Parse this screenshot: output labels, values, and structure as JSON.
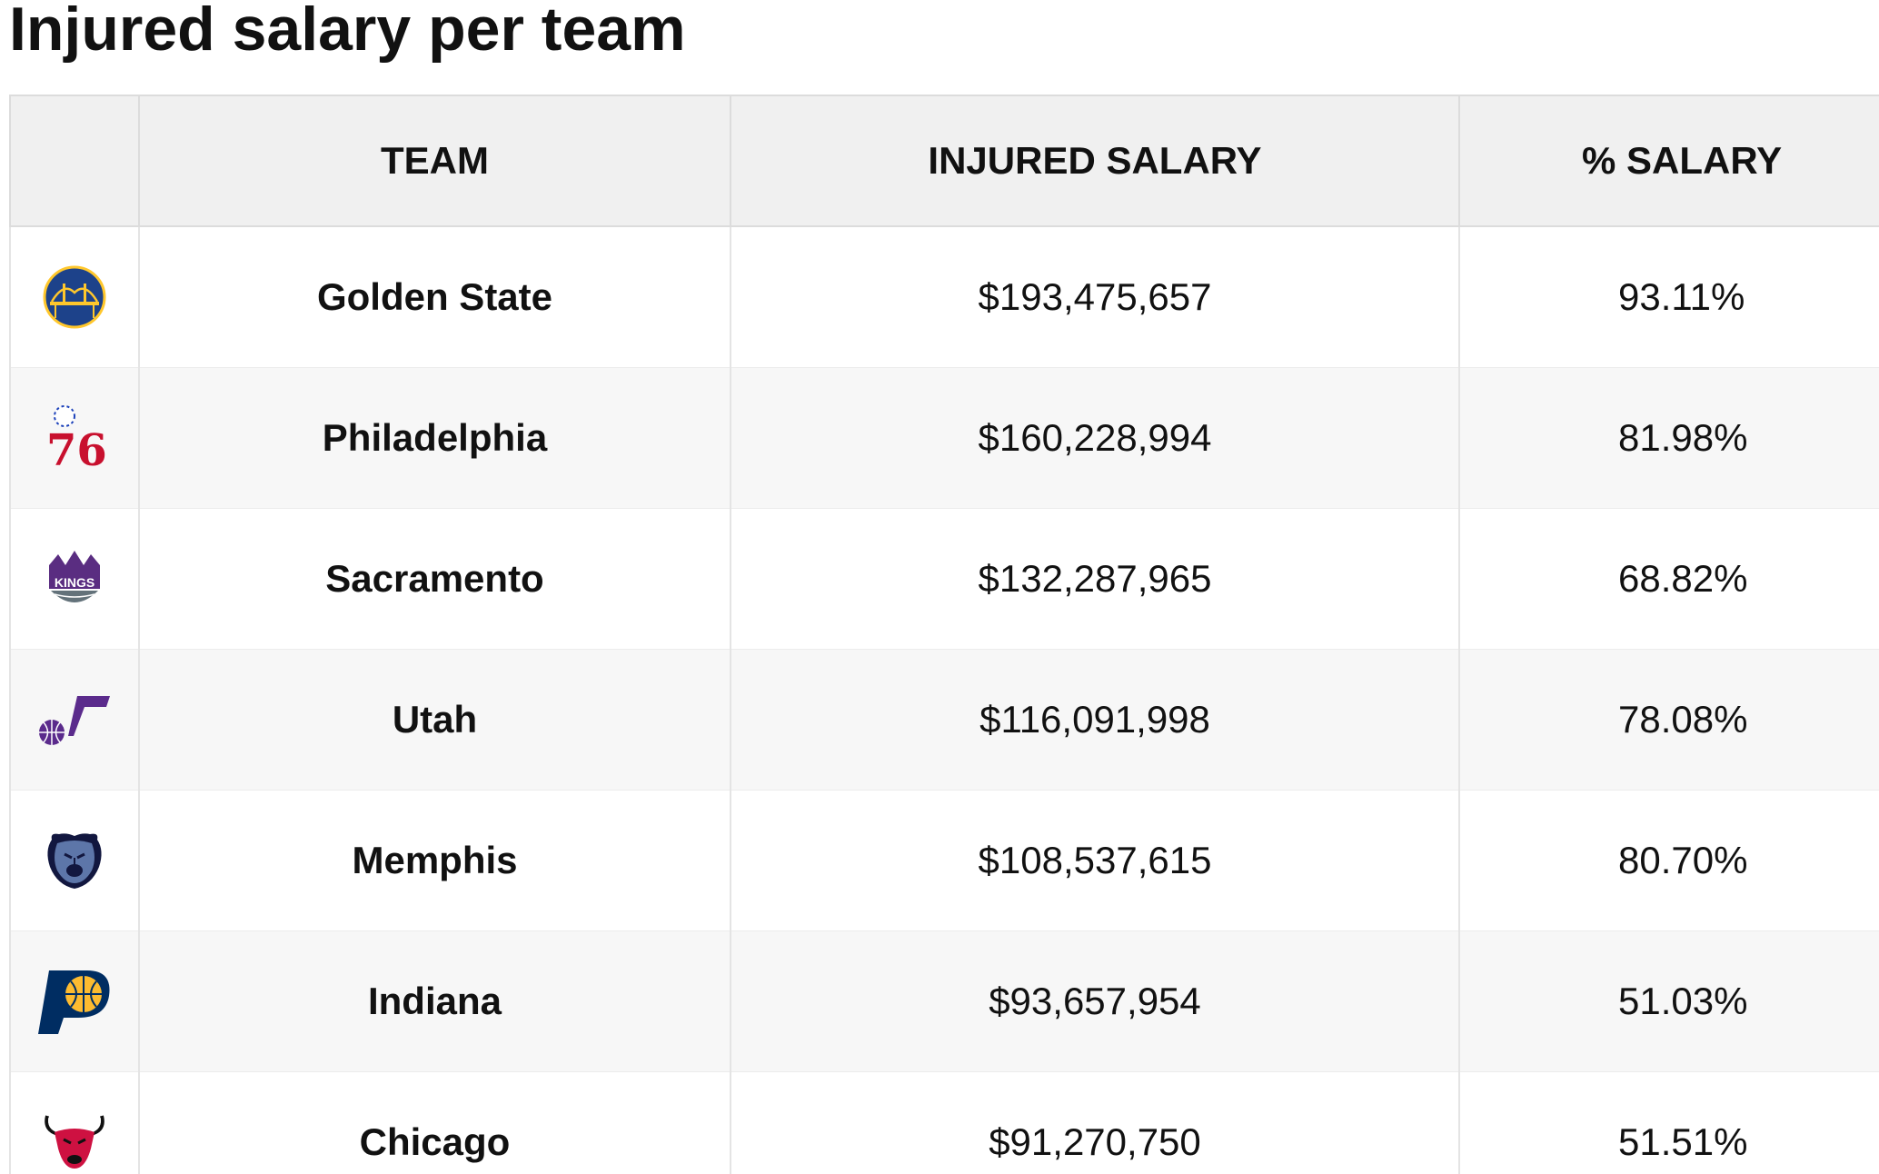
{
  "chart_data": {
    "type": "table",
    "title": "Injured salary per team",
    "columns": [
      "",
      "TEAM",
      "INJURED SALARY",
      "% SALARY"
    ],
    "rows": [
      {
        "logo": "warriors-logo-icon",
        "team": "Golden State",
        "injured_salary": "$193,475,657",
        "pct_salary": "93.11%"
      },
      {
        "logo": "76ers-logo-icon",
        "team": "Philadelphia",
        "injured_salary": "$160,228,994",
        "pct_salary": "81.98%"
      },
      {
        "logo": "kings-logo-icon",
        "team": "Sacramento",
        "injured_salary": "$132,287,965",
        "pct_salary": "68.82%"
      },
      {
        "logo": "jazz-logo-icon",
        "team": "Utah",
        "injured_salary": "$116,091,998",
        "pct_salary": "78.08%"
      },
      {
        "logo": "grizzlies-logo-icon",
        "team": "Memphis",
        "injured_salary": "$108,537,615",
        "pct_salary": "80.70%"
      },
      {
        "logo": "pacers-logo-icon",
        "team": "Indiana",
        "injured_salary": "$93,657,954",
        "pct_salary": "51.03%"
      },
      {
        "logo": "bulls-logo-icon",
        "team": "Chicago",
        "injured_salary": "$91,270,750",
        "pct_salary": "51.51%"
      }
    ]
  },
  "logo_marks": {
    "sixers": "76",
    "kings": "KINGS"
  },
  "colors": {
    "header_background": "#f0f0f0",
    "row_alt_background": "#f7f7f7",
    "border": "#dcdcdc",
    "warriors_blue": "#1d428a",
    "warriors_gold": "#ffc72c",
    "sixers_red": "#c8102e",
    "sixers_blue": "#1d42ba",
    "kings_purple": "#5a2d81",
    "kings_gray": "#63727a",
    "jazz_purple": "#5b2b8c",
    "grizzlies_navy": "#12173f",
    "grizzlies_blue": "#5d76a9",
    "pacers_navy": "#002d62",
    "pacers_gold": "#fdbb30",
    "bulls_red": "#ce1141"
  }
}
